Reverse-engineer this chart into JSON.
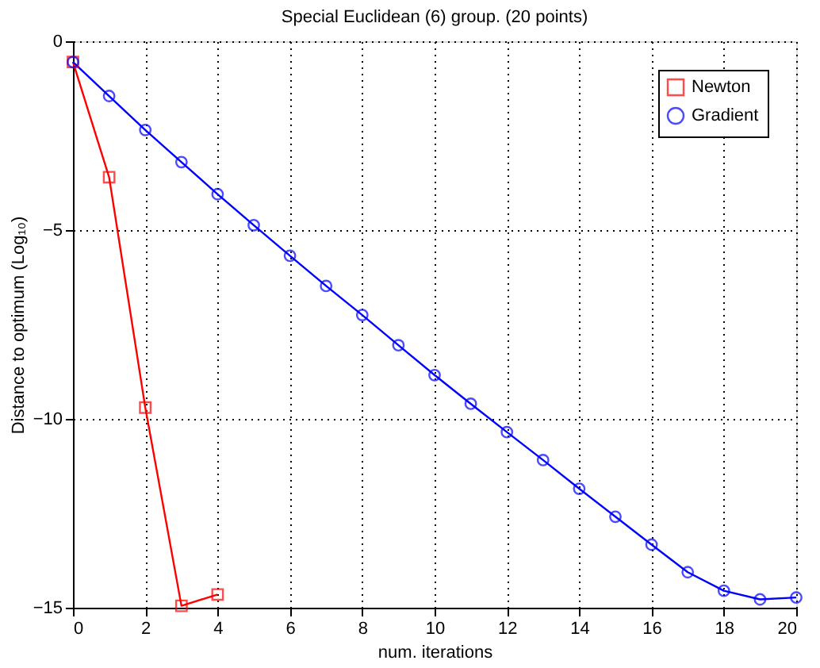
{
  "chart_data": {
    "type": "line",
    "title": "Special Euclidean (6) group. (20 points)",
    "xlabel": "num. iterations",
    "ylabel": "Distance to optimum (Log₁₀)",
    "xlim": [
      0,
      20
    ],
    "xticks": [
      0,
      2,
      4,
      6,
      8,
      10,
      12,
      14,
      16,
      18,
      20
    ],
    "ylim": [
      -15,
      0
    ],
    "yticks": [
      -15,
      -10,
      -5,
      0
    ],
    "grid": true,
    "legend": "top right",
    "series": [
      {
        "name": "Newton",
        "color": "#ff0000",
        "marker": "square",
        "x": [
          0,
          1,
          2,
          3,
          4
        ],
        "values": [
          -0.55,
          -3.6,
          -9.7,
          -14.95,
          -14.65
        ]
      },
      {
        "name": "Gradient",
        "color": "#0000ff",
        "marker": "circle",
        "x": [
          0,
          1,
          2,
          3,
          4,
          5,
          6,
          7,
          8,
          9,
          10,
          11,
          12,
          13,
          14,
          15,
          16,
          17,
          18,
          19,
          20
        ],
        "values": [
          -0.55,
          -1.45,
          -2.35,
          -3.2,
          -4.05,
          -4.87,
          -5.68,
          -6.48,
          -7.25,
          -8.05,
          -8.84,
          -9.6,
          -10.35,
          -11.09,
          -11.85,
          -12.59,
          -13.33,
          -14.06,
          -14.55,
          -14.78,
          -14.73
        ]
      }
    ]
  }
}
